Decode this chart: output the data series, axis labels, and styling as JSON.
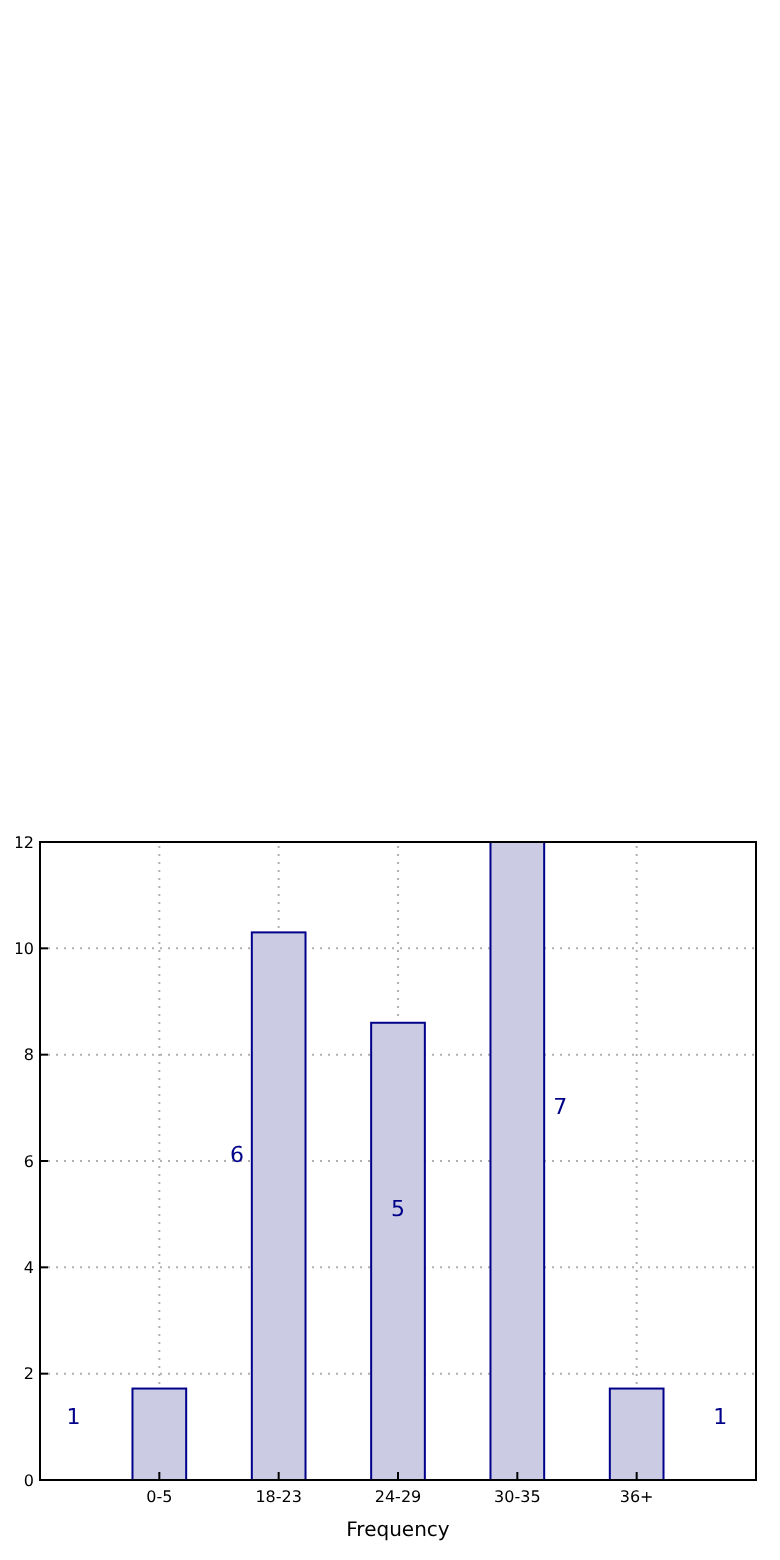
{
  "chart_data": {
    "type": "bar",
    "xlabel": "Frequency",
    "categories": [
      "0-5",
      "18-23",
      "24-29",
      "30-35",
      "36+"
    ],
    "values": [
      1.72,
      10.3,
      8.6,
      12,
      1.72
    ],
    "color": "#cbcbe3",
    "ylim": [
      0,
      12
    ],
    "yticks": [
      0,
      2,
      4,
      6,
      8,
      10,
      12
    ],
    "grid": true,
    "annotations": [
      "1",
      "6",
      "5",
      "7",
      "1"
    ]
  }
}
